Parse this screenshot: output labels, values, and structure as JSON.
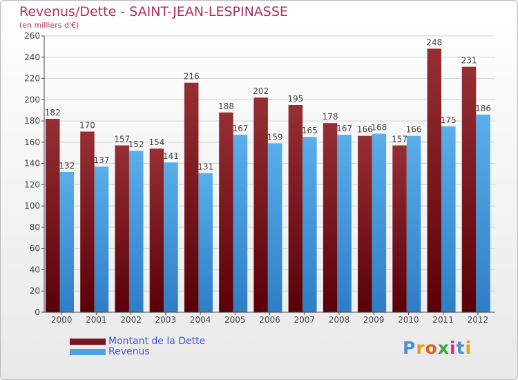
{
  "header": {
    "title": "Revenus/Dette - SAINT-JEAN-LESPINASSE",
    "subtitle": "(en milliers d'€)"
  },
  "legend": {
    "items": [
      {
        "label": "Montant de la Dette",
        "color": "#7a1520"
      },
      {
        "label": "Revenus",
        "color": "#4da3e6"
      }
    ]
  },
  "logo": {
    "text": "Proxiti"
  },
  "colors": {
    "debt_top": "#962f34",
    "debt_bottom": "#5a0008",
    "rev_top": "#5aaeea",
    "rev_bottom": "#2e7ec6",
    "grid": "#d4d4d4",
    "axis": "#444444",
    "tick_label": "#444444",
    "title": "#b03060",
    "legend_text": "#4455dd"
  },
  "chart_data": {
    "type": "bar",
    "title": "Revenus/Dette - SAINT-JEAN-LESPINASSE",
    "subtitle": "(en milliers d'€)",
    "xlabel": "",
    "ylabel": "",
    "categories": [
      "2000",
      "2001",
      "2002",
      "2003",
      "2004",
      "2005",
      "2006",
      "2007",
      "2008",
      "2009",
      "2010",
      "2011",
      "2012"
    ],
    "series": [
      {
        "name": "Montant de la Dette",
        "values": [
          182,
          170,
          157,
          154,
          216,
          188,
          202,
          195,
          178,
          166,
          157,
          248,
          231
        ]
      },
      {
        "name": "Revenus",
        "values": [
          132,
          137,
          152,
          141,
          131,
          167,
          159,
          165,
          167,
          168,
          166,
          175,
          186
        ]
      }
    ],
    "ylim": [
      0,
      260
    ],
    "yticks": [
      0,
      20,
      40,
      60,
      80,
      100,
      120,
      140,
      160,
      180,
      200,
      220,
      240,
      260
    ],
    "grid": true,
    "legend_position": "bottom-left",
    "data_labels": true
  }
}
